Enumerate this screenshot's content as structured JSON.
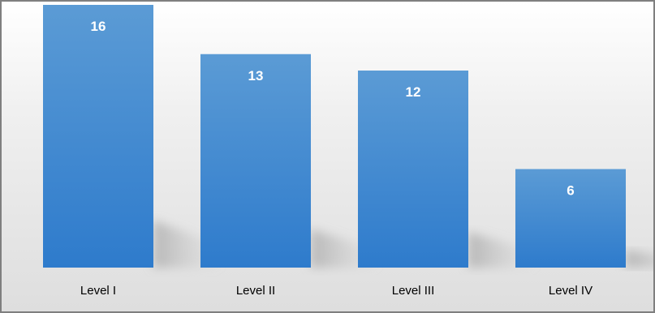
{
  "chart_data": {
    "type": "bar",
    "categories": [
      "Level I",
      "Level II",
      "Level III",
      "Level IV"
    ],
    "values": [
      16,
      13,
      12,
      6
    ],
    "title": "",
    "xlabel": "",
    "ylabel": "",
    "ylim": [
      0,
      16
    ],
    "grid": false,
    "legend": "none",
    "data_labels": "inside-top"
  },
  "colors": {
    "bar_top": "#5b9bd5",
    "bar_bottom": "#2e7bcc",
    "shadow": "#b8b8b8",
    "frame": "#7f7f7f"
  }
}
